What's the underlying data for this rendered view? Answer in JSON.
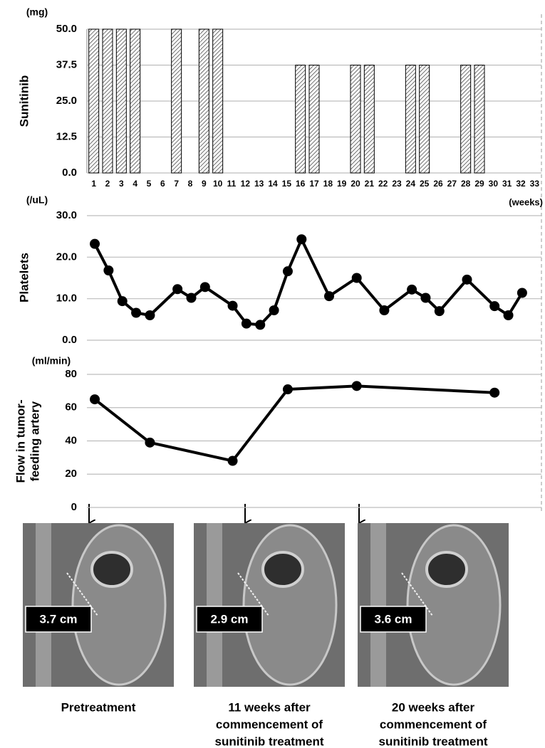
{
  "chart_data": [
    {
      "type": "bar",
      "ylabel": "Sunitinib",
      "y_unit": "(mg)",
      "x_unit": "(weeks)",
      "categories": [
        "1",
        "2",
        "3",
        "4",
        "5",
        "6",
        "7",
        "8",
        "9",
        "10",
        "11",
        "12",
        "13",
        "14",
        "15",
        "16",
        "17",
        "18",
        "19",
        "20",
        "21",
        "22",
        "23",
        "24",
        "25",
        "26",
        "27",
        "28",
        "29",
        "30",
        "31",
        "32",
        "33"
      ],
      "values": [
        50,
        50,
        50,
        50,
        0,
        0,
        50,
        0,
        50,
        50,
        0,
        0,
        0,
        0,
        0,
        37.5,
        37.5,
        0,
        0,
        37.5,
        37.5,
        0,
        0,
        37.5,
        37.5,
        0,
        0,
        37.5,
        37.5,
        0,
        0,
        0,
        0
      ],
      "ylim": [
        0,
        50
      ],
      "yticks": [
        {
          "value": 0,
          "label": "0.0"
        },
        12.5,
        {
          "value": 25,
          "label": "25.0"
        },
        37.5,
        {
          "value": 50,
          "label": "50.0"
        }
      ],
      "grid": true,
      "color": "#000000"
    },
    {
      "type": "line",
      "ylabel": "Platelets",
      "y_unit": "(/uL)",
      "x": [
        1,
        2,
        3,
        4,
        5,
        7,
        8,
        9,
        11,
        12,
        13,
        14,
        15,
        16,
        18,
        20,
        22,
        24,
        25,
        26,
        28,
        30,
        31,
        32
      ],
      "values": [
        23.2,
        16.8,
        9.4,
        6.6,
        6.0,
        12.3,
        10.2,
        12.8,
        8.3,
        4.0,
        3.7,
        7.2,
        16.6,
        24.3,
        10.6,
        15.0,
        7.2,
        12.2,
        10.2,
        7.0,
        14.6,
        8.2,
        6.0,
        11.4
      ],
      "xlim": [
        0.43,
        33.4
      ],
      "ylim": [
        0,
        30
      ],
      "yticks": [
        {
          "value": 0,
          "label": "0.0"
        },
        {
          "value": 10,
          "label": "10.0"
        },
        {
          "value": 20,
          "label": "20.0"
        },
        {
          "value": 30,
          "label": "30.0"
        }
      ],
      "grid": true,
      "color": "#000000"
    },
    {
      "type": "line",
      "ylabel": [
        "Flow in tumor-",
        "feeding artery"
      ],
      "y_unit": "(ml/min)",
      "x": [
        1,
        5,
        11,
        15,
        20,
        30
      ],
      "values": [
        65,
        39,
        28,
        71,
        73,
        69
      ],
      "xlim": [
        0.43,
        33.4
      ],
      "ylim": [
        0,
        80
      ],
      "yticks": [
        0,
        20,
        40,
        60,
        80
      ],
      "grid": true,
      "color": "#000000"
    }
  ],
  "images": [
    {
      "measurement": "3.7 cm",
      "caption": [
        "Pretreatment"
      ]
    },
    {
      "measurement": "2.9 cm",
      "caption": [
        "11 weeks after",
        "commencement of",
        "sunitinib treatment"
      ]
    },
    {
      "measurement": "3.6 cm",
      "caption": [
        "20 weeks after",
        "commencement of",
        "sunitinib treatment"
      ]
    }
  ]
}
